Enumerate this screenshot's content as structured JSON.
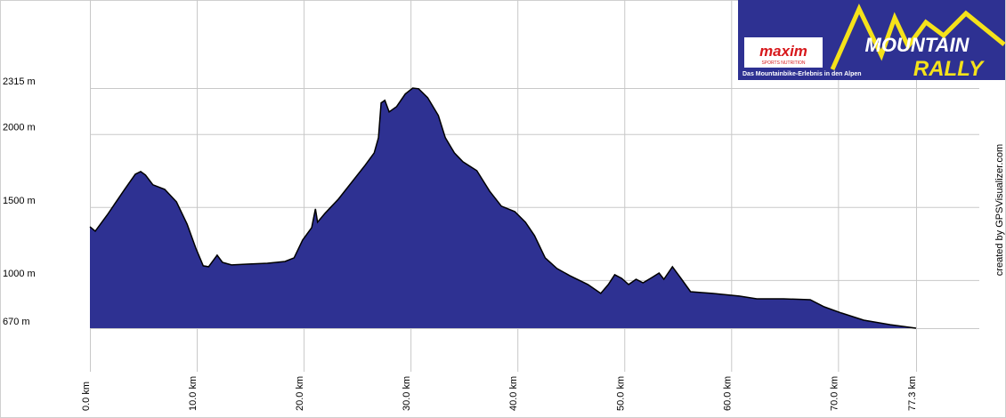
{
  "chart_data": {
    "type": "area",
    "x": [
      0,
      0.5,
      1.6,
      3.25,
      4.25,
      4.75,
      5.2,
      5.9,
      7.0,
      8.1,
      9.1,
      9.9,
      10.6,
      11.1,
      11.9,
      12.4,
      13.25,
      14.9,
      16.6,
      18.25,
      19.1,
      19.9,
      20.75,
      21.1,
      21.3,
      22.0,
      23.25,
      24.5,
      25.75,
      26.6,
      27.0,
      27.25,
      27.6,
      28.0,
      28.7,
      29.5,
      30.2,
      30.75,
      31.6,
      32.6,
      33.25,
      34.1,
      34.9,
      36.2,
      37.4,
      38.5,
      39.75,
      40.75,
      41.6,
      42.6,
      43.7,
      44.9,
      46.6,
      47.8,
      48.5,
      49.1,
      49.75,
      50.4,
      51.1,
      51.75,
      52.6,
      53.25,
      53.7,
      54.5,
      55.3,
      56.2,
      58.25,
      60.75,
      62.4,
      64.9,
      67.4,
      68.7,
      70.3,
      72.4,
      74.9,
      77.3
    ],
    "values": [
      1365,
      1335,
      1444,
      1621,
      1725,
      1743,
      1719,
      1652,
      1621,
      1536,
      1383,
      1219,
      1097,
      1091,
      1170,
      1121,
      1103,
      1109,
      1115,
      1127,
      1152,
      1274,
      1359,
      1487,
      1396,
      1457,
      1554,
      1670,
      1786,
      1871,
      1975,
      2213,
      2231,
      2152,
      2188,
      2274,
      2315,
      2310,
      2249,
      2127,
      1975,
      1871,
      1810,
      1749,
      1609,
      1506,
      1469,
      1396,
      1304,
      1152,
      1079,
      1030,
      969,
      908,
      969,
      1036,
      1011,
      969,
      1005,
      981,
      1018,
      1048,
      1005,
      1091,
      1011,
      920,
      908,
      890,
      871,
      871,
      865,
      816,
      774,
      725,
      694,
      670
    ],
    "color": "#2e3192",
    "xlim": [
      0,
      77.3
    ],
    "ylim": [
      670,
      2315
    ],
    "xticks": [
      {
        "value": 0,
        "label": "0.0 km"
      },
      {
        "value": 10,
        "label": "10.0 km"
      },
      {
        "value": 20,
        "label": "20.0 km"
      },
      {
        "value": 30,
        "label": "30.0 km"
      },
      {
        "value": 40,
        "label": "40.0 km"
      },
      {
        "value": 50,
        "label": "50.0 km"
      },
      {
        "value": 60,
        "label": "60.0 km"
      },
      {
        "value": 70,
        "label": "70.0 km"
      },
      {
        "value": 77.3,
        "label": "77.3 km"
      }
    ],
    "yticks": [
      {
        "value": 670,
        "label": "670 m"
      },
      {
        "value": 1000,
        "label": "1000 m"
      },
      {
        "value": 1500,
        "label": "1500 m"
      },
      {
        "value": 2000,
        "label": "2000 m"
      },
      {
        "value": 2315,
        "label": "2315 m"
      }
    ],
    "grid": true
  },
  "logo": {
    "brand": "maxim",
    "brand_sub": "SPORTS NUTRITION",
    "title_1": "MOUNTAIN",
    "title_2": "RALLY",
    "tagline": "Das Mountainbike-Erlebnis in den Alpen"
  },
  "credit": "created by GPSVisualizer.com"
}
